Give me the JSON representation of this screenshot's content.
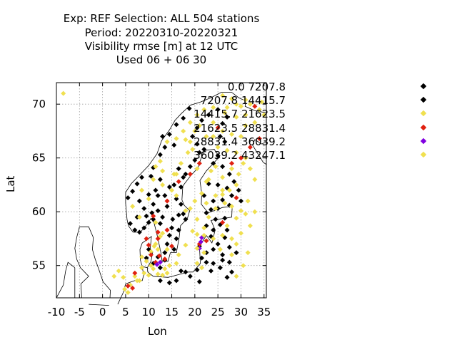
{
  "header": {
    "line1": "Exp: REF   Selection: ALL    504 stations",
    "line2": "Period: 20220310-20220321",
    "line3": "Visibility rmse [m] at  12 UTC",
    "line4": "Used  06 + 06 30"
  },
  "chart_data": {
    "type": "scatter",
    "title": "Visibility rmse [m] at  12 UTC",
    "xlabel": "Lon",
    "ylabel": "Lat",
    "xlim": [
      -10,
      35.5
    ],
    "ylim": [
      52,
      72
    ],
    "xticks": [
      "-10",
      "-5",
      "0",
      "5",
      "10",
      "15",
      "20",
      "25",
      "30",
      "35"
    ],
    "yticks": [
      "55",
      "60",
      "65",
      "70"
    ],
    "grid": true,
    "legend_position": "right",
    "classes": [
      {
        "name": "0.0 7207.8",
        "color": "#000000"
      },
      {
        "name": "7207.8 14415.7",
        "color": "#000000"
      },
      {
        "name": "14415.7 21623.5",
        "color": "#f0e050"
      },
      {
        "name": "21623.5 28831.4",
        "color": "#e02010"
      },
      {
        "name": "28831.4 36039.2",
        "color": "#8000e0"
      },
      {
        "name": "36039.2 43247.1",
        "color": "#f0e050"
      }
    ],
    "series": [
      {
        "name": "0.0 7207.8",
        "points": [
          [
            9.5,
            59.6
          ],
          [
            10.7,
            59.9
          ],
          [
            11,
            59.3
          ],
          [
            12,
            60.1
          ],
          [
            12.5,
            58.9
          ],
          [
            13,
            59.5
          ],
          [
            14,
            60.5
          ],
          [
            15.2,
            59.3
          ],
          [
            16.5,
            59.7
          ],
          [
            17.5,
            59.8
          ],
          [
            18,
            59.3
          ],
          [
            17,
            60.7
          ],
          [
            16,
            61.2
          ],
          [
            13.5,
            61.5
          ],
          [
            14.5,
            62.3
          ],
          [
            15.5,
            62.5
          ],
          [
            17,
            62.3
          ],
          [
            17.5,
            63.2
          ],
          [
            16.5,
            64
          ],
          [
            18,
            63.5
          ],
          [
            19,
            64.2
          ],
          [
            20,
            64.8
          ],
          [
            21,
            65.5
          ],
          [
            22,
            65.8
          ],
          [
            20.5,
            66.3
          ],
          [
            19.5,
            67
          ],
          [
            20.5,
            67.8
          ],
          [
            21.5,
            68.5
          ],
          [
            23,
            69
          ],
          [
            25,
            69.5
          ],
          [
            26,
            68.2
          ],
          [
            27,
            68.8
          ],
          [
            25.5,
            67
          ],
          [
            26.5,
            66.5
          ],
          [
            25,
            65.2
          ],
          [
            24,
            64.5
          ],
          [
            26,
            64.2
          ],
          [
            27.5,
            63.5
          ],
          [
            28.5,
            62.8
          ],
          [
            27,
            62.2
          ],
          [
            25,
            62.5
          ],
          [
            23,
            62.6
          ],
          [
            22,
            61.5
          ],
          [
            24,
            61
          ],
          [
            26,
            61.1
          ],
          [
            28,
            61.5
          ],
          [
            29.5,
            62
          ],
          [
            30,
            61
          ],
          [
            27.5,
            60.6
          ],
          [
            25,
            60.3
          ],
          [
            23.5,
            60.2
          ],
          [
            22.5,
            59.9
          ],
          [
            10,
            56.5
          ],
          [
            9.5,
            55.7
          ],
          [
            12,
            55.8
          ],
          [
            11,
            55.2
          ],
          [
            12.5,
            54.8
          ],
          [
            13.5,
            55.5
          ],
          [
            13.5,
            56.2
          ],
          [
            14,
            57
          ],
          [
            15.5,
            56.5
          ],
          [
            16,
            57.5
          ],
          [
            14.5,
            57.8
          ],
          [
            15,
            58.5
          ],
          [
            16.5,
            58.3
          ],
          [
            18,
            59.3
          ],
          [
            21,
            56.8
          ],
          [
            22.5,
            56.2
          ],
          [
            24,
            56.5
          ],
          [
            25,
            57
          ],
          [
            26,
            56
          ],
          [
            24,
            55.2
          ],
          [
            25.5,
            54.8
          ],
          [
            23.5,
            54.5
          ],
          [
            26,
            55.5
          ],
          [
            22.5,
            55.3
          ],
          [
            21.5,
            55.7
          ],
          [
            20.5,
            54.6
          ],
          [
            18,
            54.4
          ],
          [
            17,
            54.5
          ],
          [
            19,
            54
          ],
          [
            21,
            53.5
          ],
          [
            16,
            53.6
          ],
          [
            14.5,
            53.4
          ],
          [
            12.5,
            53.6
          ],
          [
            22.5,
            58.7
          ],
          [
            24,
            58.3
          ],
          [
            25.5,
            58.8
          ],
          [
            27,
            58.3
          ],
          [
            26.5,
            59.4
          ],
          [
            24.5,
            59.3
          ],
          [
            23.5,
            57.7
          ],
          [
            26.5,
            57.6
          ],
          [
            27.5,
            56.7
          ],
          [
            27.5,
            55.3
          ],
          [
            28,
            54.4
          ],
          [
            27,
            53.9
          ],
          [
            29,
            56.2
          ],
          [
            5.5,
            61.3
          ],
          [
            6.5,
            61.9
          ],
          [
            7.5,
            62.6
          ],
          [
            8.5,
            63.2
          ],
          [
            10.5,
            63.3
          ],
          [
            11,
            64.1
          ],
          [
            12.5,
            65.3
          ],
          [
            13.5,
            66
          ],
          [
            14.5,
            67.2
          ],
          [
            16,
            68.1
          ],
          [
            17.5,
            68.7
          ],
          [
            18.8,
            69.6
          ],
          [
            8,
            61
          ],
          [
            10,
            61.6
          ],
          [
            11.5,
            62
          ],
          [
            12.5,
            63
          ],
          [
            15.5,
            66.2
          ],
          [
            13,
            67
          ],
          [
            6,
            58.9
          ],
          [
            7,
            58.3
          ],
          [
            8,
            58.1
          ],
          [
            9,
            58.5
          ],
          [
            10,
            59
          ],
          [
            7.5,
            59.5
          ],
          [
            9,
            60.3
          ],
          [
            11,
            60.7
          ],
          [
            12,
            61.5
          ]
        ]
      },
      {
        "name": "14415.7 21623.5",
        "points": [
          [
            -8.5,
            71
          ],
          [
            8,
            53.6
          ],
          [
            7,
            54
          ],
          [
            6,
            53.2
          ],
          [
            9,
            54.3
          ],
          [
            10,
            54.1
          ],
          [
            11,
            54.7
          ],
          [
            12,
            54.2
          ],
          [
            13,
            54.1
          ],
          [
            14,
            54.3
          ],
          [
            4.5,
            53.9
          ],
          [
            4.8,
            52.8
          ],
          [
            5.5,
            52.5
          ],
          [
            3.5,
            54.5
          ],
          [
            2.5,
            54
          ],
          [
            9.5,
            55.4
          ],
          [
            8.5,
            55.8
          ],
          [
            10.5,
            56.3
          ],
          [
            11.5,
            57
          ],
          [
            12.5,
            57.7
          ],
          [
            18,
            56.9
          ],
          [
            20.5,
            57.9
          ],
          [
            22,
            58.5
          ],
          [
            23,
            59.5
          ],
          [
            24.5,
            60.3
          ],
          [
            26.5,
            60.8
          ],
          [
            28,
            60.5
          ],
          [
            30,
            60.1
          ],
          [
            22.5,
            60.8
          ],
          [
            21.5,
            61.7
          ],
          [
            22.5,
            62.8
          ],
          [
            23.5,
            63.8
          ],
          [
            24.5,
            64.2
          ],
          [
            26,
            63.2
          ],
          [
            28,
            64
          ],
          [
            29.5,
            63.5
          ],
          [
            30.5,
            64.5
          ],
          [
            29,
            65.5
          ],
          [
            27,
            65.7
          ],
          [
            25,
            66
          ],
          [
            24,
            67
          ],
          [
            26,
            67.5
          ],
          [
            28,
            67.2
          ],
          [
            30,
            67
          ],
          [
            31,
            68
          ],
          [
            29,
            68.8
          ],
          [
            26.5,
            69.2
          ],
          [
            24,
            69.7
          ],
          [
            22,
            69.5
          ],
          [
            20.5,
            69
          ],
          [
            19,
            68.3
          ],
          [
            17.5,
            67.5
          ],
          [
            16,
            66.8
          ],
          [
            14,
            66.5
          ],
          [
            12.5,
            64.7
          ],
          [
            13,
            63.8
          ],
          [
            11,
            63
          ],
          [
            16,
            63.5
          ],
          [
            17,
            64.5
          ],
          [
            18.5,
            65.5
          ],
          [
            19,
            66.5
          ],
          [
            20,
            67.5
          ],
          [
            21,
            68
          ],
          [
            15,
            62
          ],
          [
            13,
            62.5
          ],
          [
            8.5,
            62
          ],
          [
            6.5,
            60.5
          ],
          [
            8,
            59.5
          ],
          [
            11.5,
            59
          ],
          [
            13,
            58
          ],
          [
            14,
            56.5
          ],
          [
            16.5,
            56
          ],
          [
            16,
            55.2
          ],
          [
            14.5,
            55
          ],
          [
            12,
            56.5
          ],
          [
            20,
            61
          ],
          [
            19,
            60.3
          ],
          [
            18,
            60.1
          ],
          [
            20.5,
            59.3
          ],
          [
            16,
            61.5
          ],
          [
            15.5,
            63.5
          ],
          [
            11.5,
            64.2
          ],
          [
            10,
            61.2
          ],
          [
            32,
            70
          ],
          [
            34,
            69.5
          ],
          [
            35,
            69
          ],
          [
            33,
            68.3
          ],
          [
            31,
            69
          ],
          [
            30,
            69.8
          ],
          [
            28,
            70.5
          ],
          [
            26,
            70.8
          ],
          [
            27.5,
            62
          ],
          [
            29,
            62.5
          ],
          [
            24.5,
            61.5
          ],
          [
            26,
            62
          ],
          [
            24,
            57.5
          ],
          [
            25.5,
            56.5
          ],
          [
            26,
            57.8
          ],
          [
            28,
            57.5
          ],
          [
            29,
            57
          ],
          [
            28,
            56
          ],
          [
            22,
            56.2
          ],
          [
            20.5,
            55.2
          ],
          [
            21.5,
            54.8
          ],
          [
            29,
            54
          ],
          [
            30.5,
            55
          ],
          [
            31.5,
            56.2
          ],
          [
            30,
            58
          ],
          [
            32,
            58.7
          ],
          [
            33,
            60
          ],
          [
            31.5,
            61
          ],
          [
            33,
            63
          ],
          [
            32,
            64
          ],
          [
            31,
            65
          ]
        ]
      },
      {
        "name": "21623.5 28831.4",
        "points": [
          [
            10.5,
            56
          ],
          [
            11.5,
            55.3
          ],
          [
            13.5,
            55.6
          ],
          [
            15,
            56.8
          ],
          [
            12.3,
            55.9
          ],
          [
            10,
            56.9
          ],
          [
            7,
            54.3
          ],
          [
            5.5,
            53.1
          ],
          [
            6.5,
            52.9
          ],
          [
            9.5,
            57.5
          ],
          [
            12,
            58.1
          ],
          [
            14,
            58.3
          ],
          [
            21,
            57
          ],
          [
            22.5,
            57.3
          ],
          [
            26,
            59
          ],
          [
            29,
            61.3
          ],
          [
            28,
            64.5
          ],
          [
            30,
            65
          ],
          [
            32,
            66
          ],
          [
            34,
            66.8
          ],
          [
            33,
            69.8
          ],
          [
            25,
            67.8
          ],
          [
            21,
            64.5
          ],
          [
            19,
            63.5
          ],
          [
            16.5,
            62.8
          ],
          [
            14,
            61
          ],
          [
            11,
            59.6
          ],
          [
            12,
            57.5
          ]
        ]
      },
      {
        "name": "28831.4 36039.2",
        "points": [
          [
            21.3,
            57.2
          ],
          [
            21,
            56.6
          ],
          [
            12.5,
            55.3
          ],
          [
            11.8,
            55.1
          ],
          [
            21.5,
            57.6
          ]
        ]
      },
      {
        "name": "36039.2 43247.1",
        "points": [
          [
            7.5,
            53.6
          ],
          [
            8.5,
            54.8
          ],
          [
            10.5,
            55
          ],
          [
            13.5,
            54.7
          ],
          [
            11.2,
            56.8
          ],
          [
            20.5,
            56.6
          ],
          [
            22,
            57.8
          ],
          [
            19.5,
            58.2
          ],
          [
            27,
            58.7
          ],
          [
            29,
            59.4
          ],
          [
            31,
            59.8
          ],
          [
            26,
            61.6
          ],
          [
            23,
            63
          ],
          [
            20.5,
            64
          ],
          [
            19.5,
            65.8
          ],
          [
            18,
            66.7
          ],
          [
            22.5,
            67
          ],
          [
            24,
            68.3
          ],
          [
            27,
            69.7
          ],
          [
            29,
            70
          ],
          [
            31,
            70.4
          ],
          [
            34.5,
            70.2
          ]
        ]
      }
    ]
  }
}
